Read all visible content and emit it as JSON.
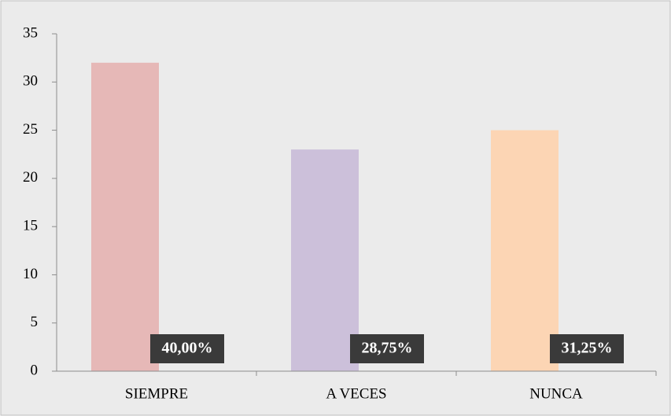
{
  "chart_data": {
    "type": "bar",
    "categories": [
      "SIEMPRE",
      "A VECES",
      "NUNCA"
    ],
    "values": [
      32,
      23,
      25
    ],
    "colors": [
      "#e6b8b7",
      "#ccc0da",
      "#fcd5b4"
    ],
    "percent": {
      "values": [
        40,
        28.75,
        31.25
      ],
      "value_labels": [
        "40,00%",
        "28,75%",
        "31,25%"
      ]
    },
    "ylim": [
      0,
      35
    ],
    "yticks": [
      0,
      5,
      10,
      15,
      20,
      25,
      30,
      35
    ],
    "grid": false
  }
}
